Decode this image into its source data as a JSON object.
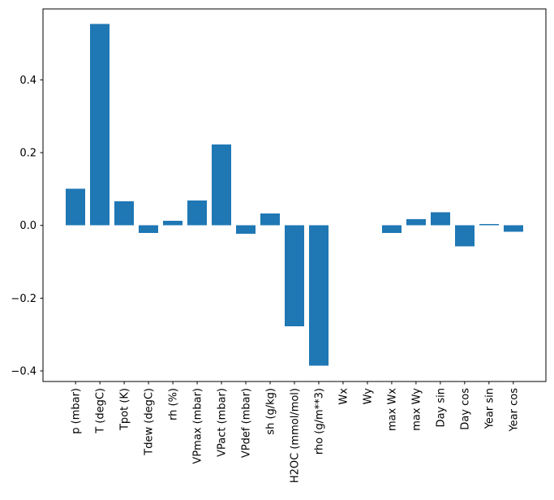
{
  "chart_data": {
    "type": "bar",
    "title": "",
    "xlabel": "",
    "ylabel": "",
    "categories": [
      "p (mbar)",
      "T (degC)",
      "Tpot (K)",
      "Tdew (degC)",
      "rh (%)",
      "VPmax (mbar)",
      "VPact (mbar)",
      "VPdef (mbar)",
      "sh (g/kg)",
      "H2OC (mmol/mol)",
      "rho (g/m**3)",
      "Wx",
      "Wy",
      "max Wx",
      "max Wy",
      "Day sin",
      "Day cos",
      "Year sin",
      "Year cos"
    ],
    "values": [
      0.101,
      0.554,
      0.066,
      -0.021,
      0.013,
      0.068,
      0.223,
      -0.023,
      0.033,
      -0.277,
      -0.385,
      0.0,
      0.0,
      -0.021,
      0.017,
      0.036,
      -0.057,
      0.004,
      -0.017
    ],
    "bar_color": "#1f77b4",
    "axis_color": "#000000",
    "background_color": "#ffffff",
    "ylim": [
      -0.429,
      0.595
    ],
    "xlim": [
      -1.34,
      19.34
    ],
    "yticks": [
      -0.4,
      -0.2,
      0.0,
      0.2,
      0.4
    ],
    "bar_width": 0.8,
    "grid": false,
    "legend": "none",
    "x_tick_rotation": 90
  }
}
